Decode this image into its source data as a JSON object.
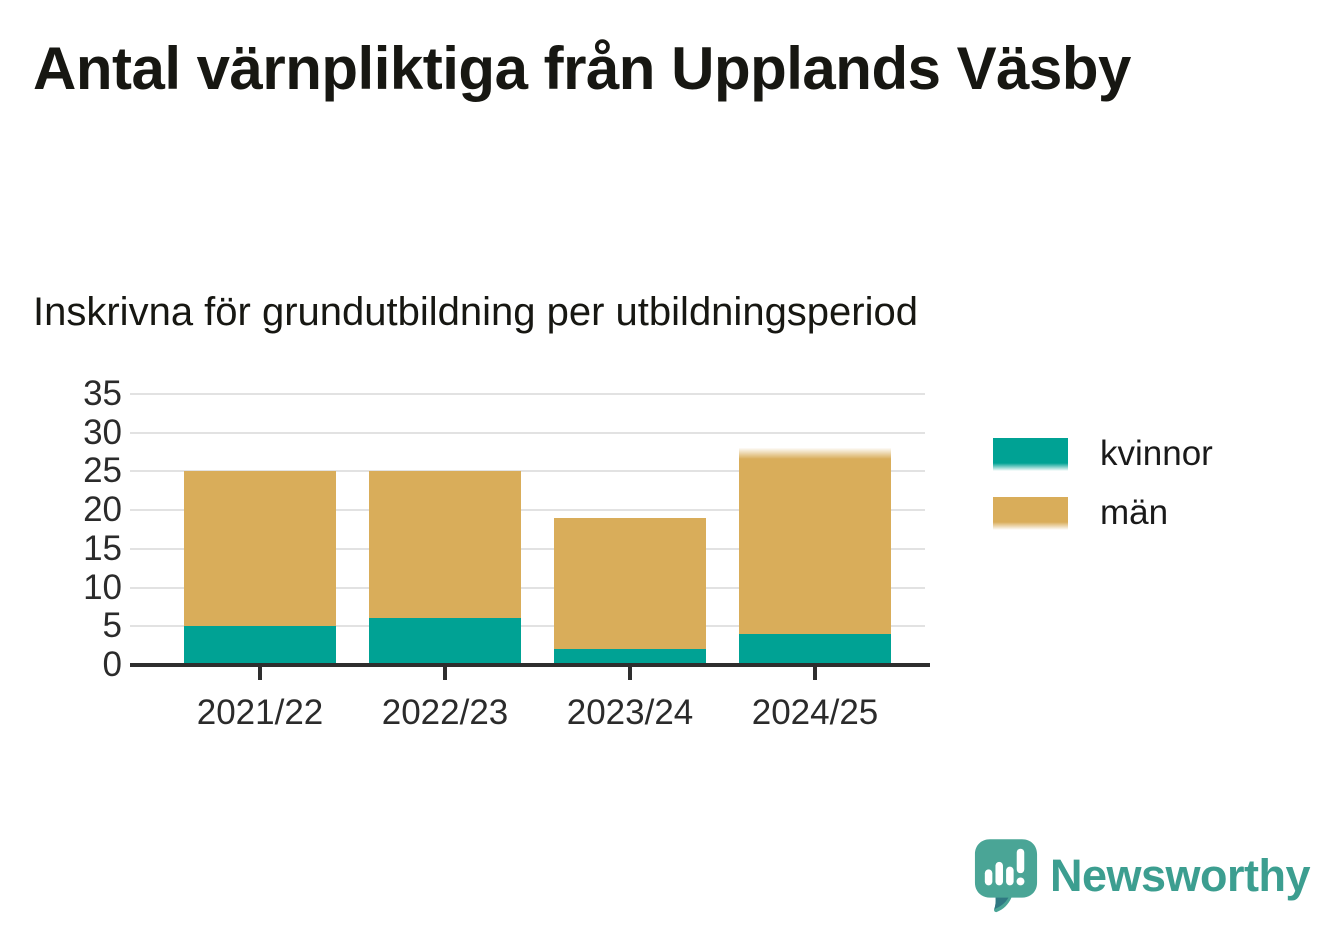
{
  "header": {
    "title": "Antal värnpliktiga från Upplands Väsby",
    "subtitle": "Inskrivna för grundutbildning per utbildningsperiod"
  },
  "chart_data": {
    "type": "bar",
    "stacked": true,
    "title": "Antal värnpliktiga från Upplands Väsby",
    "subtitle": "Inskrivna för grundutbildning per utbildningsperiod",
    "categories": [
      "2021/22",
      "2022/23",
      "2023/24",
      "2024/25"
    ],
    "series": [
      {
        "name": "kvinnor",
        "color": "#00a294",
        "values": [
          5,
          6,
          2,
          4
        ]
      },
      {
        "name": "män",
        "color": "#d9ad5a",
        "values": [
          20,
          19,
          17,
          24
        ]
      }
    ],
    "totals": [
      25,
      25,
      19,
      28
    ],
    "ylim": [
      0,
      35
    ],
    "yticks": [
      0,
      5,
      10,
      15,
      20,
      25,
      30,
      35
    ],
    "xlabel": "",
    "ylabel": "",
    "grid": true,
    "legend_position": "right",
    "faded_top_bar_index": 3
  },
  "legend": {
    "items": [
      {
        "label": "kvinnor",
        "color": "#00a294"
      },
      {
        "label": "män",
        "color": "#d9ad5a"
      }
    ]
  },
  "footer": {
    "brand": "Newsworthy",
    "brand_text_color": "#3c9e90",
    "logo_bubble_color": "#4aa596",
    "logo_shadow_color": "#2e7380"
  },
  "colors": {
    "axis": "#2e2e2e",
    "gridline": "#e2e2e2",
    "axis_text": "#2b2b2b",
    "title_text": "#171712"
  }
}
